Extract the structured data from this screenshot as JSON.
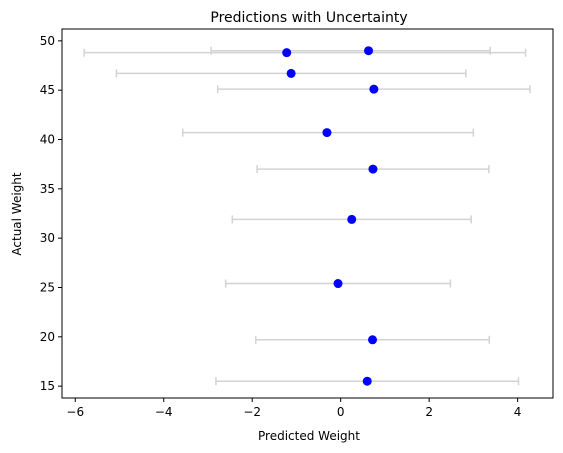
{
  "chart_data": {
    "type": "scatter",
    "title": "Predictions with Uncertainty",
    "xlabel": "Predicted Weight",
    "ylabel": "Actual Weight",
    "xlim": [
      -6.3,
      4.8
    ],
    "ylim": [
      13.8,
      51.2
    ],
    "xticks": [
      -6,
      -4,
      -2,
      0,
      2,
      4
    ],
    "xtick_labels": [
      "−6",
      "−4",
      "−2",
      "0",
      "2",
      "4"
    ],
    "yticks": [
      15,
      20,
      25,
      30,
      35,
      40,
      45,
      50
    ],
    "ytick_labels": [
      "15",
      "20",
      "25",
      "30",
      "35",
      "40",
      "45",
      "50"
    ],
    "grid": false,
    "marker_color": "#0000ff",
    "errorbar_color": "#d3d3d3",
    "points": [
      {
        "x": 0.6,
        "y": 15.5,
        "xerr_low": -2.82,
        "xerr_high": 4.02
      },
      {
        "x": 0.72,
        "y": 19.7,
        "xerr_low": -1.92,
        "xerr_high": 3.36
      },
      {
        "x": -0.06,
        "y": 25.4,
        "xerr_low": -2.6,
        "xerr_high": 2.48
      },
      {
        "x": 0.25,
        "y": 31.9,
        "xerr_low": -2.45,
        "xerr_high": 2.95
      },
      {
        "x": 0.73,
        "y": 37.0,
        "xerr_low": -1.89,
        "xerr_high": 3.35
      },
      {
        "x": -0.31,
        "y": 40.7,
        "xerr_low": -3.57,
        "xerr_high": 3.0
      },
      {
        "x": 0.75,
        "y": 45.1,
        "xerr_low": -2.78,
        "xerr_high": 4.28
      },
      {
        "x": -1.12,
        "y": 46.7,
        "xerr_low": -5.07,
        "xerr_high": 2.83
      },
      {
        "x": -1.22,
        "y": 48.8,
        "xerr_low": -5.8,
        "xerr_high": 4.18
      },
      {
        "x": 0.63,
        "y": 49.0,
        "xerr_low": -2.93,
        "xerr_high": 3.38
      }
    ]
  }
}
